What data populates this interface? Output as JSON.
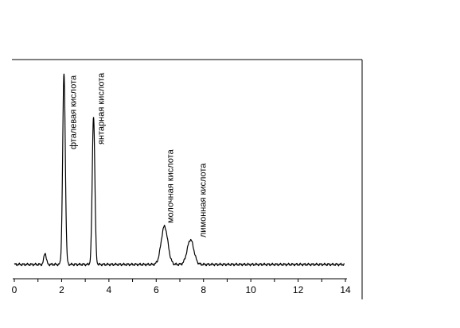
{
  "chart_data": {
    "type": "line",
    "title": "",
    "xlabel": "",
    "ylabel": "",
    "xlim": [
      0,
      14
    ],
    "ylim": [
      0,
      1
    ],
    "x_ticks": [
      0,
      2,
      4,
      6,
      8,
      10,
      12,
      14
    ],
    "grid": false,
    "series": [
      {
        "peaks": [
          {
            "x": 1.3,
            "height": 0.06
          },
          {
            "x": 2.1,
            "height": 1.0
          },
          {
            "x": 3.35,
            "height": 0.78
          },
          {
            "x": 6.35,
            "height": 0.2
          },
          {
            "x": 7.45,
            "height": 0.13
          }
        ]
      }
    ],
    "annotations": [
      {
        "text": "фталевая кислота",
        "x": 2.1
      },
      {
        "text": "янтарная кислота",
        "x": 3.35
      },
      {
        "text": "молочная кислота",
        "x": 6.35
      },
      {
        "text": "лимонная кислота",
        "x": 7.45
      }
    ],
    "colors": {
      "line": "#000000",
      "axis": "#000000",
      "background": "#ffffff"
    }
  }
}
